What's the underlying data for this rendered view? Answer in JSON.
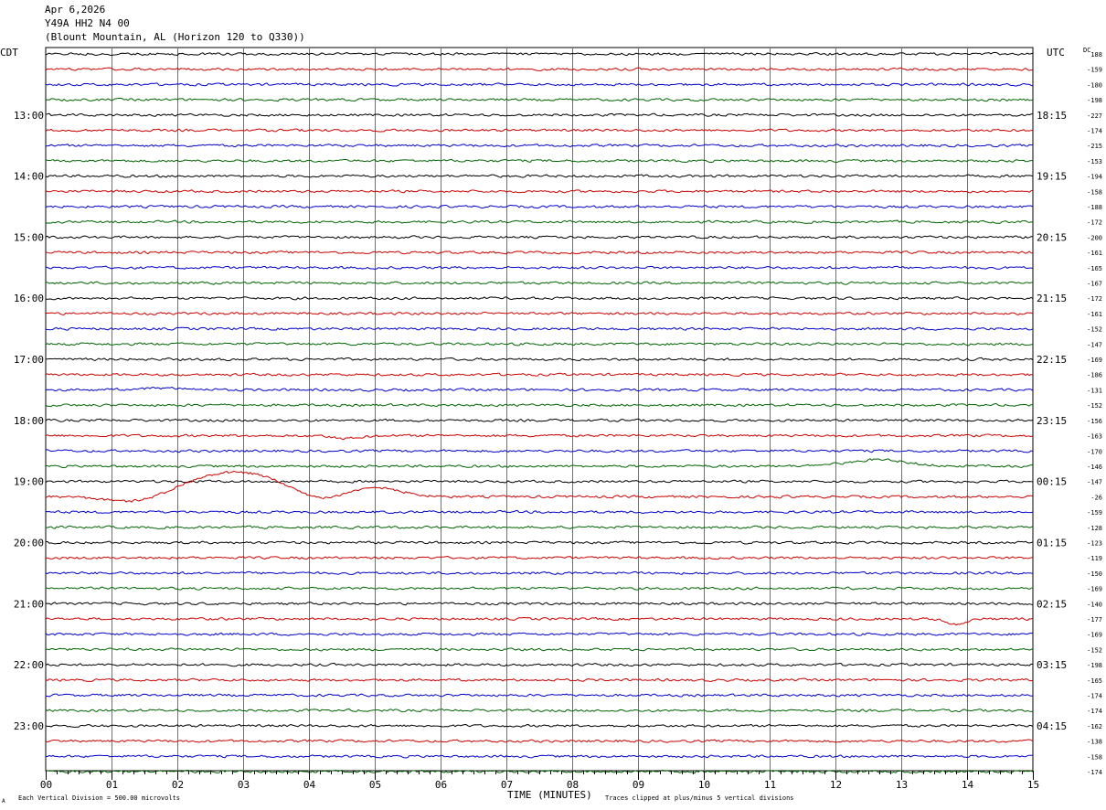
{
  "header": {
    "date": "Apr 6,2026",
    "channel": "Y49A HH2 N4 00",
    "location": "(Blount Mountain, AL (Horizon 120 to Q330))"
  },
  "chart_data": {
    "type": "line",
    "title": "",
    "left_axis_label": "CDT",
    "right_axis_label": "UTC",
    "dc_label": "DC",
    "xlabel": "TIME (MINUTES)",
    "xlim": [
      0,
      15
    ],
    "x_ticks": [
      "00",
      "01",
      "02",
      "03",
      "04",
      "05",
      "06",
      "07",
      "08",
      "09",
      "10",
      "11",
      "12",
      "13",
      "14",
      "15"
    ],
    "left_time_labels": [
      "13:00",
      "14:00",
      "15:00",
      "16:00",
      "17:00",
      "18:00",
      "19:00",
      "20:00",
      "21:00",
      "22:00",
      "23:00"
    ],
    "right_time_labels": [
      "18:15",
      "19:15",
      "20:15",
      "21:15",
      "22:15",
      "23:15",
      "00:15",
      "01:15",
      "02:15",
      "03:15",
      "04:15"
    ],
    "dc_offsets": [
      "188",
      "-159",
      "-180",
      "-198",
      "-227",
      "-174",
      "-215",
      "-153",
      "-194",
      "-158",
      "-188",
      "-172",
      "-200",
      "-161",
      "-165",
      "-167",
      "-172",
      "-161",
      "-152",
      "-147",
      "-169",
      "-186",
      "-131",
      "-152",
      "-156",
      "-163",
      "-170",
      "-146",
      "-147",
      "-26",
      "-159",
      "-128",
      "-123",
      "-119",
      "-150",
      "-169",
      "-140",
      "-177",
      "-169",
      "-152",
      "-198",
      "-165",
      "-174",
      "-174",
      "-162",
      "-138",
      "-158",
      "-174"
    ],
    "trace_colors": [
      "#000000",
      "#cc0000",
      "#0000cc",
      "#006400"
    ],
    "trace_count": 48,
    "traces_per_hour": 4,
    "scale_note": "Each Vertical Division =  500.00 microvolts",
    "clip_note": "Traces clipped at plus/minus 5 vertical divisions",
    "corner_mark": "A"
  }
}
